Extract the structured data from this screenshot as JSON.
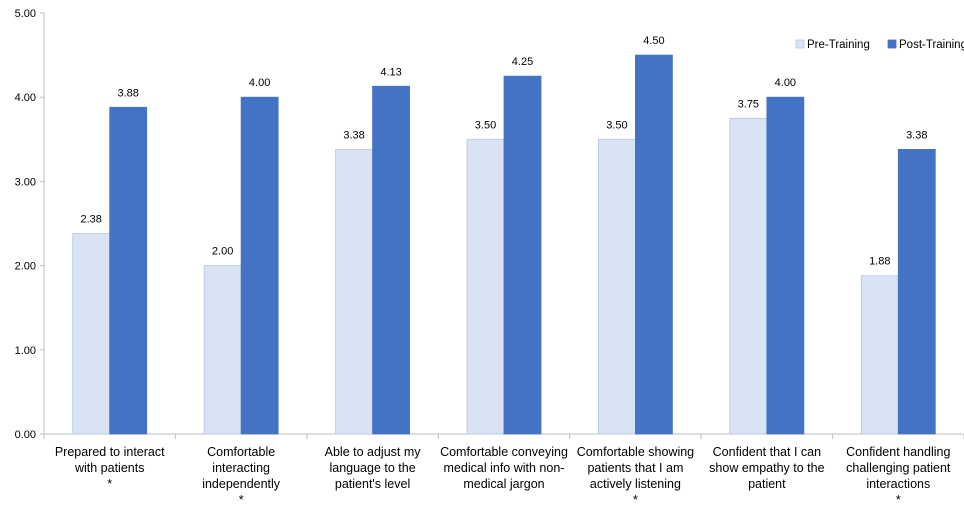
{
  "chart_data": {
    "type": "bar",
    "title": "",
    "xlabel": "",
    "ylabel": "",
    "ylim": [
      0,
      5
    ],
    "yticks": [
      "0.00",
      "1.00",
      "2.00",
      "3.00",
      "4.00",
      "5.00"
    ],
    "grid": false,
    "legend_position": "top-right",
    "categories": [
      [
        "Prepared to interact",
        "with patients",
        "*"
      ],
      [
        "Comfortable",
        "interacting",
        "independently",
        "*"
      ],
      [
        "Able to adjust my",
        "language to the",
        "patient's level"
      ],
      [
        "Comfortable conveying",
        "medical info with non-",
        "medical jargon"
      ],
      [
        "Comfortable showing",
        "patients that I am",
        "actively listening",
        "*"
      ],
      [
        "Confident that I can",
        "show empathy to the",
        "patient"
      ],
      [
        "Confident handling",
        "challenging patient",
        "interactions",
        "*"
      ]
    ],
    "series": [
      {
        "name": "Pre-Training",
        "color": "#dae3f3",
        "stroke": "#b4c7e7",
        "values": [
          2.38,
          2.0,
          3.38,
          3.5,
          3.5,
          3.75,
          1.88
        ],
        "labels": [
          "2.38",
          "2.00",
          "3.38",
          "3.50",
          "3.50",
          "3.75",
          "1.88"
        ]
      },
      {
        "name": "Post-Training",
        "color": "#4472c4",
        "stroke": "#4472c4",
        "values": [
          3.88,
          4.0,
          4.13,
          4.25,
          4.5,
          4.0,
          3.38
        ],
        "labels": [
          "3.88",
          "4.00",
          "4.13",
          "4.25",
          "4.50",
          "4.00",
          "3.38"
        ]
      }
    ]
  }
}
